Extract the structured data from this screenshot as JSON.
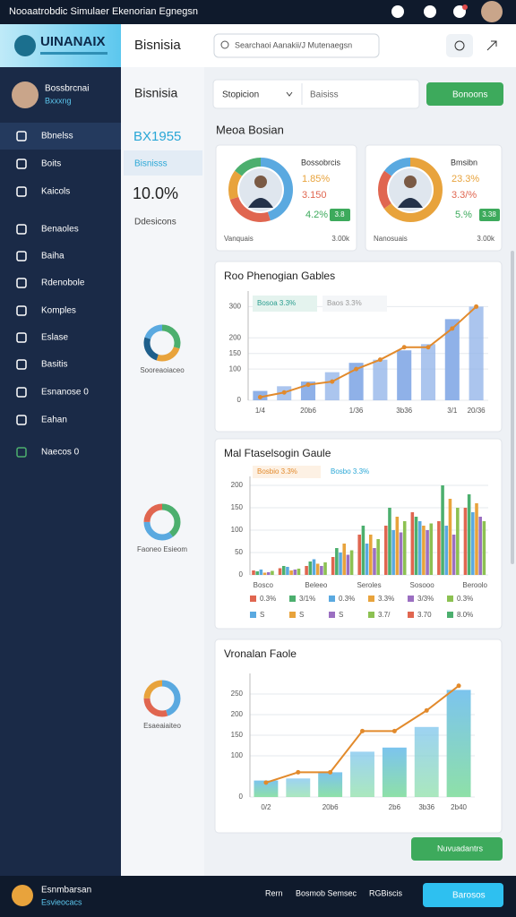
{
  "status_bar": {
    "title": "Nooaatrobdic Simulaer Ekenorian Egnegsn"
  },
  "header": {
    "logo": "UINANAIX",
    "title": "Bisnisia",
    "search": "Searchaoi Aanakii/J Mutenaegsn"
  },
  "sidebar": {
    "user_name": "Bossbrcnai",
    "user_role": "Bxxxng",
    "nav": [
      "Bbnelss",
      "Boits",
      "Kaicols",
      "Benaoles",
      "Baiha",
      "Rdenobole",
      "Komples",
      "Eslase",
      "Basitis",
      "Esnanose 0",
      "Eahan",
      "Naecos 0"
    ]
  },
  "summary": {
    "code": "BX1955",
    "label": "Bisnisss",
    "value": "10.0%",
    "caption": "Ddesicons"
  },
  "mini_donuts": [
    {
      "label": "Sooreaoiaceo",
      "values": [
        30,
        25,
        25,
        20
      ],
      "colors": [
        "#4caf6e",
        "#e8a33c",
        "#1f5f8b",
        "#5aa9e0"
      ]
    },
    {
      "label": "Faoneo Esieom",
      "values": [
        40,
        35,
        25
      ],
      "colors": [
        "#4caf6e",
        "#5aa9e0",
        "#e06650"
      ]
    },
    {
      "label": "Esaeaiaiteo",
      "values": [
        45,
        30,
        25
      ],
      "colors": [
        "#5aa9e0",
        "#e06650",
        "#e8a33c"
      ]
    }
  ],
  "toolbar": {
    "select": "Stopicion",
    "field": "Baisiss",
    "button": "Bonoons"
  },
  "section_title": "Meoa Bosian",
  "cards": [
    {
      "title": "Bossobrcis",
      "value_1": "1.85%",
      "value_2": "3.150",
      "change": "4.2%",
      "badge": "3.8",
      "footer_left": "Vanquais",
      "footer_right": "3.00k",
      "donut": {
        "values": [
          45,
          25,
          15,
          15
        ],
        "colors": [
          "#5aa9e0",
          "#e06650",
          "#e8a33c",
          "#4caf6e"
        ]
      }
    },
    {
      "title": "Bmsibn",
      "value_1": "23.3%",
      "value_2": "3.3/%",
      "change": "5.%",
      "badge": "3.38",
      "footer_left": "Nanosuais",
      "footer_right": "3.00k",
      "donut": {
        "values": [
          65,
          20,
          15
        ],
        "colors": [
          "#e8a33c",
          "#e06650",
          "#5aa9e0"
        ]
      }
    }
  ],
  "charts": [
    {
      "type": "bar-line",
      "title": "Roo Phenogian Gables",
      "categories": [
        "1/4",
        null,
        "20b6",
        null,
        "1/36",
        null,
        "3b36",
        null,
        "3/1",
        "20/36"
      ],
      "series": [
        {
          "name": "Bosoa 3.3%",
          "color": "#8fb1e8",
          "kind": "bar",
          "values": [
            30,
            45,
            60,
            90,
            120,
            130,
            160,
            180,
            260,
            300
          ]
        },
        {
          "name": "Baos 3.3%",
          "color": "#e28a2c",
          "kind": "line",
          "values": [
            10,
            25,
            50,
            60,
            100,
            130,
            170,
            170,
            230,
            300
          ]
        }
      ],
      "ylim": [
        0,
        350
      ],
      "yticks": [
        0,
        100,
        150,
        200,
        300
      ],
      "grid": true
    },
    {
      "type": "grouped-bar",
      "title": "Mal Ftaselsogin Gaule",
      "categories": [
        "Bosco",
        null,
        "Beleeo",
        null,
        "Seroles",
        null,
        "Sosooo",
        null,
        "Beroolo"
      ],
      "notes": [
        "Bosbio 3.3%",
        "Bosbo 3.3%"
      ],
      "series": [
        {
          "name": "0.3%",
          "note": "S",
          "color": "#e06650",
          "values": [
            10,
            15,
            20,
            40,
            90,
            110,
            140,
            120,
            150
          ]
        },
        {
          "name": "3/1%",
          "note": "S",
          "color": "#4caf6e",
          "values": [
            8,
            20,
            30,
            60,
            110,
            150,
            130,
            200,
            180
          ]
        },
        {
          "name": "0.3%",
          "note": "S",
          "color": "#5aa9e0",
          "values": [
            12,
            18,
            35,
            50,
            70,
            100,
            120,
            110,
            140
          ]
        },
        {
          "name": "3.3%",
          "note": "3.7/",
          "color": "#e8a33c",
          "values": [
            5,
            10,
            25,
            70,
            90,
            130,
            110,
            170,
            160
          ]
        },
        {
          "name": "3/3%",
          "note": "3.70",
          "color": "#9b6fc1",
          "values": [
            6,
            12,
            20,
            45,
            60,
            95,
            100,
            90,
            130
          ]
        },
        {
          "name": "0.3%",
          "note": "8.0%",
          "color": "#8cc152",
          "values": [
            9,
            14,
            28,
            55,
            80,
            120,
            115,
            150,
            120
          ]
        }
      ],
      "ylim": [
        0,
        220
      ],
      "yticks": [
        0,
        50,
        100,
        150,
        200
      ],
      "grid": true
    },
    {
      "type": "area-bar-line",
      "title": "Vronalan Faole",
      "categories": [
        "0/2",
        null,
        "20b6",
        null,
        "2b6",
        "3b36",
        "2b40"
      ],
      "series": [
        {
          "color": "#7fd3a8",
          "kind": "bar",
          "values": [
            40,
            45,
            60,
            110,
            120,
            170,
            260
          ]
        },
        {
          "color": "#e28a2c",
          "kind": "line",
          "values": [
            35,
            60,
            60,
            160,
            160,
            210,
            270
          ]
        }
      ],
      "ylim": [
        0,
        300
      ],
      "yticks": [
        0,
        100,
        150,
        200,
        250
      ],
      "grid": true
    }
  ],
  "footer_button": "Nuvuadantrs",
  "bottom_bar": {
    "brand": "Esnmbarsan",
    "brand_sub": "Esvieocacs",
    "links": [
      "Rern",
      "Bosmob Semsec",
      "RGBiscis"
    ],
    "button": "Barosos"
  }
}
